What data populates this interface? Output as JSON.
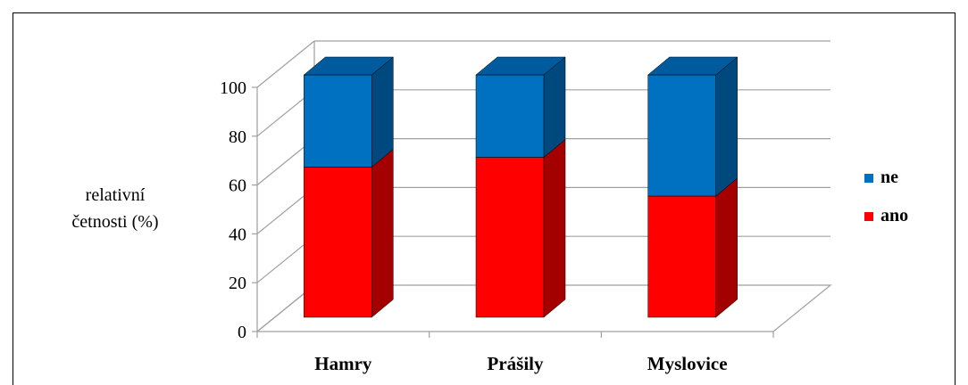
{
  "chart_data": {
    "type": "bar",
    "stacked": true,
    "three_d": true,
    "categories": [
      "Hamry",
      "Prášily",
      "Myslovice"
    ],
    "series": [
      {
        "name": "ano",
        "values": [
          62,
          66,
          50
        ],
        "color": "#ff0000",
        "side_color": "#a50000",
        "top_color": "#cc0000"
      },
      {
        "name": "ne",
        "values": [
          38,
          34,
          50
        ],
        "color": "#0070c0",
        "side_color": "#00497e",
        "top_color": "#005a9e"
      }
    ],
    "ylabel_lines": [
      "relativní",
      "četnosti (%)"
    ],
    "y_ticks": [
      "0",
      "20",
      "40",
      "60",
      "80",
      "100"
    ],
    "ylim": [
      0,
      100
    ],
    "grid": true,
    "legend_position": "right",
    "legend_order": [
      "ne",
      "ano"
    ]
  }
}
